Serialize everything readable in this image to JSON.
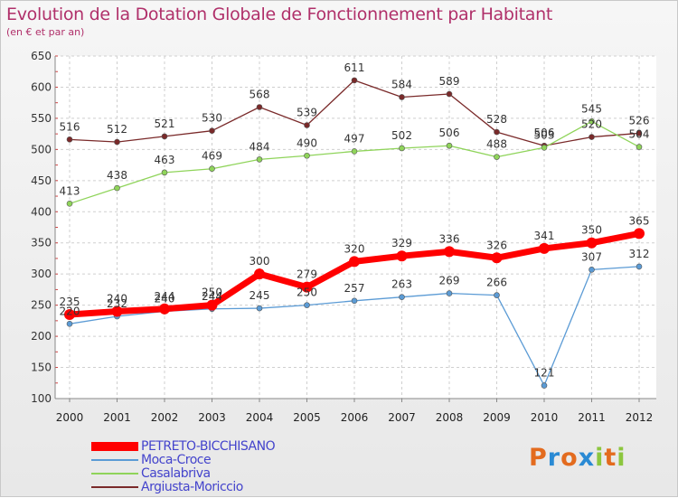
{
  "header": {
    "title": "Evolution de la Dotation Globale de Fonctionnement par Habitant",
    "subtitle": "(en € et par an)"
  },
  "logo": {
    "text": "Proxiti",
    "letters": [
      "P",
      "r",
      "o",
      "x",
      "i",
      "t",
      "i"
    ],
    "letter_colors": [
      "#e36b1e",
      "#2a8ad4",
      "#e36b1e",
      "#2a8ad4",
      "#8cc63e",
      "#e36b1e",
      "#8cc63e"
    ]
  },
  "chart_data": {
    "type": "line",
    "title": "Evolution de la Dotation Globale de Fonctionnement par Habitant",
    "subtitle": "(en € et par an)",
    "xlabel": "",
    "ylabel": "",
    "x": [
      "2000",
      "2001",
      "2002",
      "2003",
      "2004",
      "2005",
      "2006",
      "2007",
      "2008",
      "2009",
      "2010",
      "2011",
      "2012"
    ],
    "ylim": [
      100,
      650
    ],
    "yticks": [
      100,
      150,
      200,
      250,
      300,
      350,
      400,
      450,
      500,
      550,
      600,
      650
    ],
    "grid": true,
    "legend_position": "bottom-left",
    "series": [
      {
        "name": "PETRETO-BICCHISANO",
        "color": "#ff0000",
        "values": [
          235,
          240,
          244,
          250,
          300,
          279,
          320,
          329,
          336,
          326,
          341,
          350,
          365
        ]
      },
      {
        "name": "Moca-Croce",
        "color": "#5b9bd5",
        "values": [
          220,
          232,
          240,
          244,
          245,
          250,
          257,
          263,
          269,
          266,
          121,
          307,
          312
        ]
      },
      {
        "name": "Casalabriva",
        "color": "#8fd45a",
        "values": [
          413,
          438,
          463,
          469,
          484,
          490,
          497,
          502,
          506,
          488,
          503,
          545,
          504
        ]
      },
      {
        "name": "Argiusta-Moriccio",
        "color": "#7a2a2a",
        "values": [
          516,
          512,
          521,
          530,
          568,
          539,
          611,
          584,
          589,
          528,
          506,
          520,
          526
        ]
      }
    ]
  }
}
